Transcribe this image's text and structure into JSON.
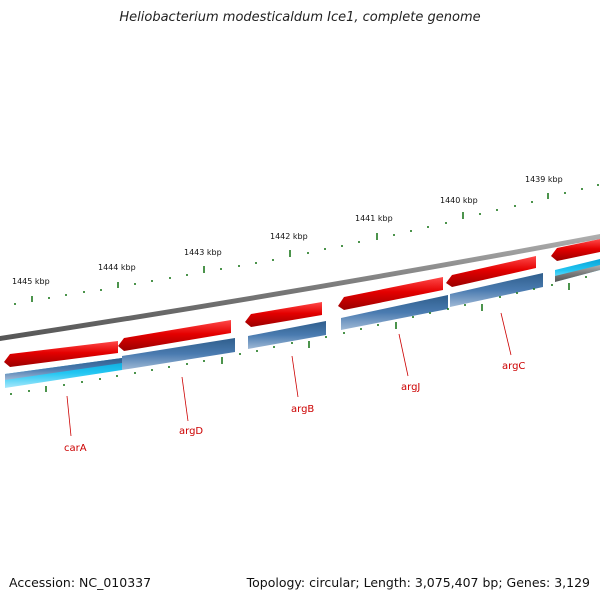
{
  "title": "Heliobacterium modesticaldum Ice1, complete genome",
  "footer": {
    "accession": "Accession: NC_010337",
    "summary": "Topology: circular; Length: 3,075,407 bp; Genes: 3,129"
  },
  "colors": {
    "backbone": "#808080",
    "forward_gene": "#e40000",
    "reverse_gene": "#4a7bb0",
    "reverse_gene_light": "#22c6f2",
    "tick": "#1f7a1f",
    "label": "#cc0000"
  },
  "kbp_labels": [
    "1445 kbp",
    "1444 kbp",
    "1443 kbp",
    "1442 kbp",
    "1441 kbp",
    "1440 kbp",
    "1439 kbp"
  ],
  "gene_labels": [
    "carA",
    "argD",
    "argB",
    "argJ",
    "argC"
  ]
}
